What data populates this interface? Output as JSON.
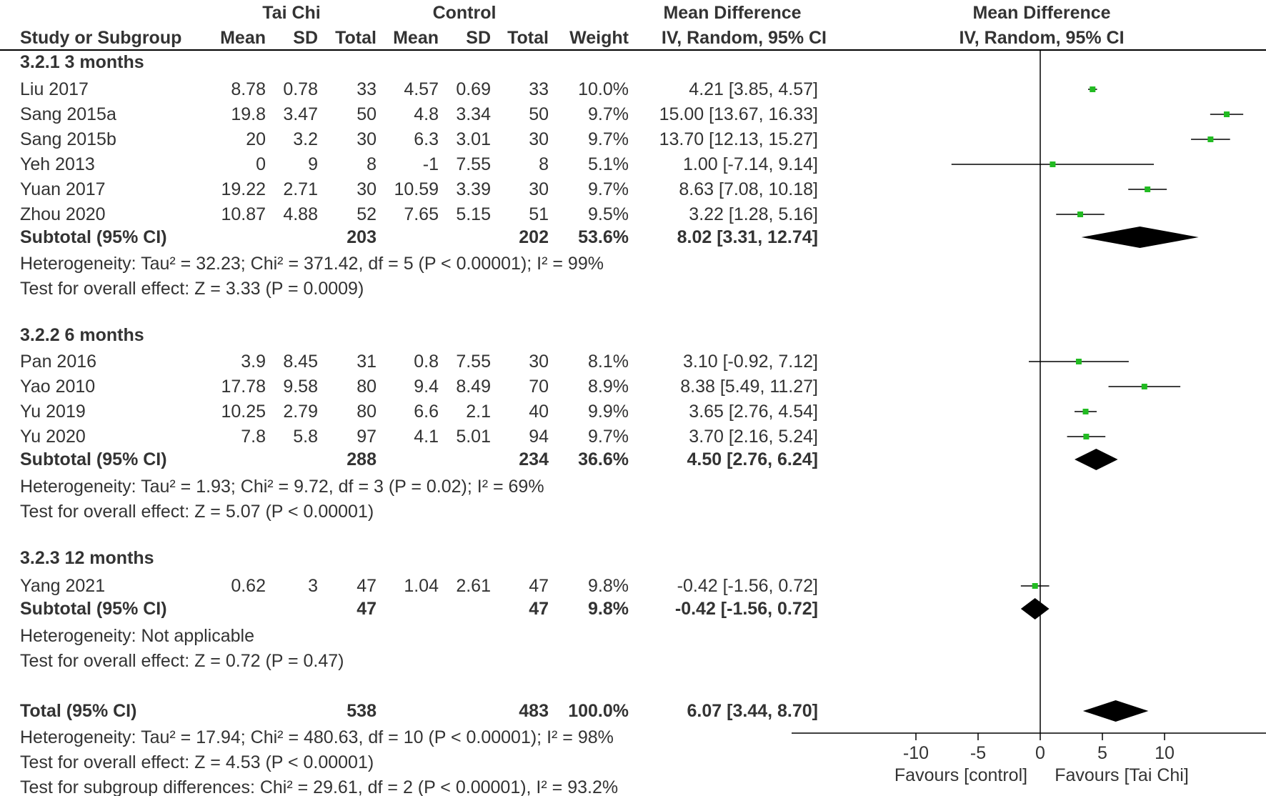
{
  "chart_data": {
    "type": "forest",
    "title": "Mean Difference, IV, Random, 95% CI",
    "header": {
      "group1": "Tai Chi",
      "group2": "Control",
      "effect": "Mean Difference",
      "study": "Study or Subgroup",
      "mean": "Mean",
      "sd": "SD",
      "total": "Total",
      "weight": "Weight",
      "ci": "IV, Random, 95% CI",
      "plot_title": "Mean Difference",
      "plot_sub": "IV, Random, 95% CI"
    },
    "subgroups": [
      {
        "label": "3.2.1 3 months",
        "studies": [
          {
            "name": "Liu 2017",
            "m1": "8.78",
            "sd1": "0.78",
            "n1": "33",
            "m2": "4.57",
            "sd2": "0.69",
            "n2": "33",
            "weight": "10.0%",
            "ci": "4.21 [3.85, 4.57]",
            "md": 4.21,
            "lo": 3.85,
            "hi": 4.57
          },
          {
            "name": "Sang 2015a",
            "m1": "19.8",
            "sd1": "3.47",
            "n1": "50",
            "m2": "4.8",
            "sd2": "3.34",
            "n2": "50",
            "weight": "9.7%",
            "ci": "15.00 [13.67, 16.33]",
            "md": 15.0,
            "lo": 13.67,
            "hi": 16.33
          },
          {
            "name": "Sang 2015b",
            "m1": "20",
            "sd1": "3.2",
            "n1": "30",
            "m2": "6.3",
            "sd2": "3.01",
            "n2": "30",
            "weight": "9.7%",
            "ci": "13.70 [12.13, 15.27]",
            "md": 13.7,
            "lo": 12.13,
            "hi": 15.27
          },
          {
            "name": "Yeh 2013",
            "m1": "0",
            "sd1": "9",
            "n1": "8",
            "m2": "-1",
            "sd2": "7.55",
            "n2": "8",
            "weight": "5.1%",
            "ci": "1.00 [-7.14, 9.14]",
            "md": 1.0,
            "lo": -7.14,
            "hi": 9.14
          },
          {
            "name": "Yuan 2017",
            "m1": "19.22",
            "sd1": "2.71",
            "n1": "30",
            "m2": "10.59",
            "sd2": "3.39",
            "n2": "30",
            "weight": "9.7%",
            "ci": "8.63 [7.08, 10.18]",
            "md": 8.63,
            "lo": 7.08,
            "hi": 10.18
          },
          {
            "name": "Zhou 2020",
            "m1": "10.87",
            "sd1": "4.88",
            "n1": "52",
            "m2": "7.65",
            "sd2": "5.15",
            "n2": "51",
            "weight": "9.5%",
            "ci": "3.22 [1.28, 5.16]",
            "md": 3.22,
            "lo": 1.28,
            "hi": 5.16
          }
        ],
        "subtotal": {
          "label": "Subtotal (95% CI)",
          "n1": "203",
          "n2": "202",
          "weight": "53.6%",
          "ci": "8.02 [3.31, 12.74]",
          "md": 8.02,
          "lo": 3.31,
          "hi": 12.74
        },
        "heterogeneity": "Heterogeneity: Tau² = 32.23; Chi² = 371.42, df = 5 (P < 0.00001); I² = 99%",
        "overall": "Test for overall effect: Z = 3.33 (P = 0.0009)"
      },
      {
        "label": "3.2.2 6 months",
        "studies": [
          {
            "name": "Pan 2016",
            "m1": "3.9",
            "sd1": "8.45",
            "n1": "31",
            "m2": "0.8",
            "sd2": "7.55",
            "n2": "30",
            "weight": "8.1%",
            "ci": "3.10 [-0.92, 7.12]",
            "md": 3.1,
            "lo": -0.92,
            "hi": 7.12
          },
          {
            "name": "Yao 2010",
            "m1": "17.78",
            "sd1": "9.58",
            "n1": "80",
            "m2": "9.4",
            "sd2": "8.49",
            "n2": "70",
            "weight": "8.9%",
            "ci": "8.38 [5.49, 11.27]",
            "md": 8.38,
            "lo": 5.49,
            "hi": 11.27
          },
          {
            "name": "Yu 2019",
            "m1": "10.25",
            "sd1": "2.79",
            "n1": "80",
            "m2": "6.6",
            "sd2": "2.1",
            "n2": "40",
            "weight": "9.9%",
            "ci": "3.65 [2.76, 4.54]",
            "md": 3.65,
            "lo": 2.76,
            "hi": 4.54
          },
          {
            "name": "Yu 2020",
            "m1": "7.8",
            "sd1": "5.8",
            "n1": "97",
            "m2": "4.1",
            "sd2": "5.01",
            "n2": "94",
            "weight": "9.7%",
            "ci": "3.70 [2.16, 5.24]",
            "md": 3.7,
            "lo": 2.16,
            "hi": 5.24
          }
        ],
        "subtotal": {
          "label": "Subtotal (95% CI)",
          "n1": "288",
          "n2": "234",
          "weight": "36.6%",
          "ci": "4.50 [2.76, 6.24]",
          "md": 4.5,
          "lo": 2.76,
          "hi": 6.24
        },
        "heterogeneity": "Heterogeneity: Tau² = 1.93; Chi² = 9.72, df = 3 (P = 0.02); I² = 69%",
        "overall": "Test for overall effect: Z = 5.07 (P < 0.00001)"
      },
      {
        "label": "3.2.3 12 months",
        "studies": [
          {
            "name": "Yang 2021",
            "m1": "0.62",
            "sd1": "3",
            "n1": "47",
            "m2": "1.04",
            "sd2": "2.61",
            "n2": "47",
            "weight": "9.8%",
            "ci": "-0.42 [-1.56, 0.72]",
            "md": -0.42,
            "lo": -1.56,
            "hi": 0.72
          }
        ],
        "subtotal": {
          "label": "Subtotal (95% CI)",
          "n1": "47",
          "n2": "47",
          "weight": "9.8%",
          "ci": "-0.42 [-1.56, 0.72]",
          "md": -0.42,
          "lo": -1.56,
          "hi": 0.72
        },
        "heterogeneity": "Heterogeneity: Not applicable",
        "overall": "Test for overall effect: Z = 0.72 (P = 0.47)"
      }
    ],
    "total": {
      "label": "Total (95% CI)",
      "n1": "538",
      "n2": "483",
      "weight": "100.0%",
      "ci": "6.07 [3.44, 8.70]",
      "md": 6.07,
      "lo": 3.44,
      "hi": 8.7,
      "heterogeneity": "Heterogeneity: Tau² = 17.94; Chi² = 480.63, df = 10 (P < 0.00001); I² = 98%",
      "overall": "Test for overall effect: Z = 4.53 (P < 0.00001)",
      "subgroup": "Test for subgroup differences: Chi² = 29.61, df = 2 (P < 0.00001), I² = 93.2%"
    },
    "axis": {
      "xlim": [
        -20,
        20
      ],
      "ticks": [
        -10,
        -5,
        0,
        5,
        10
      ],
      "tick_labels": [
        "-10",
        "-5",
        "0",
        "5",
        "10"
      ],
      "left_label": "Favours [control]",
      "right_label": "Favours [Tai Chi]"
    },
    "colors": {
      "point": "#22bb22",
      "diamond": "#000000",
      "line": "#000000",
      "text": "#333333"
    }
  }
}
